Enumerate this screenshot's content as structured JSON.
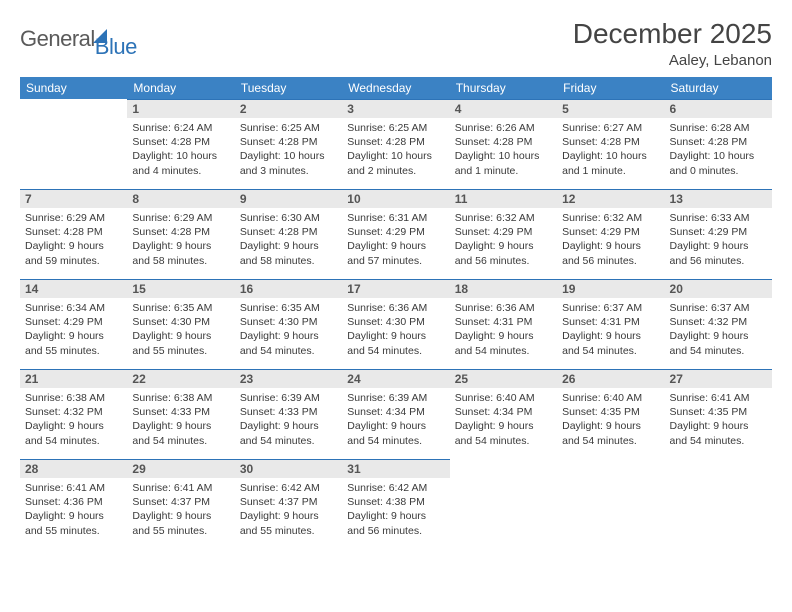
{
  "brand": {
    "text1": "General",
    "text2": "Blue"
  },
  "title": "December 2025",
  "location": "Aaley, Lebanon",
  "header_bg": "#3b82c4",
  "daynum_bg": "#e9e9e9",
  "border_color": "#2d73b7",
  "text_color": "#333333",
  "weekdays": [
    "Sunday",
    "Monday",
    "Tuesday",
    "Wednesday",
    "Thursday",
    "Friday",
    "Saturday"
  ],
  "weeks": [
    [
      null,
      {
        "n": "1",
        "sr": "Sunrise: 6:24 AM",
        "ss": "Sunset: 4:28 PM",
        "dl": "Daylight: 10 hours and 4 minutes."
      },
      {
        "n": "2",
        "sr": "Sunrise: 6:25 AM",
        "ss": "Sunset: 4:28 PM",
        "dl": "Daylight: 10 hours and 3 minutes."
      },
      {
        "n": "3",
        "sr": "Sunrise: 6:25 AM",
        "ss": "Sunset: 4:28 PM",
        "dl": "Daylight: 10 hours and 2 minutes."
      },
      {
        "n": "4",
        "sr": "Sunrise: 6:26 AM",
        "ss": "Sunset: 4:28 PM",
        "dl": "Daylight: 10 hours and 1 minute."
      },
      {
        "n": "5",
        "sr": "Sunrise: 6:27 AM",
        "ss": "Sunset: 4:28 PM",
        "dl": "Daylight: 10 hours and 1 minute."
      },
      {
        "n": "6",
        "sr": "Sunrise: 6:28 AM",
        "ss": "Sunset: 4:28 PM",
        "dl": "Daylight: 10 hours and 0 minutes."
      }
    ],
    [
      {
        "n": "7",
        "sr": "Sunrise: 6:29 AM",
        "ss": "Sunset: 4:28 PM",
        "dl": "Daylight: 9 hours and 59 minutes."
      },
      {
        "n": "8",
        "sr": "Sunrise: 6:29 AM",
        "ss": "Sunset: 4:28 PM",
        "dl": "Daylight: 9 hours and 58 minutes."
      },
      {
        "n": "9",
        "sr": "Sunrise: 6:30 AM",
        "ss": "Sunset: 4:28 PM",
        "dl": "Daylight: 9 hours and 58 minutes."
      },
      {
        "n": "10",
        "sr": "Sunrise: 6:31 AM",
        "ss": "Sunset: 4:29 PM",
        "dl": "Daylight: 9 hours and 57 minutes."
      },
      {
        "n": "11",
        "sr": "Sunrise: 6:32 AM",
        "ss": "Sunset: 4:29 PM",
        "dl": "Daylight: 9 hours and 56 minutes."
      },
      {
        "n": "12",
        "sr": "Sunrise: 6:32 AM",
        "ss": "Sunset: 4:29 PM",
        "dl": "Daylight: 9 hours and 56 minutes."
      },
      {
        "n": "13",
        "sr": "Sunrise: 6:33 AM",
        "ss": "Sunset: 4:29 PM",
        "dl": "Daylight: 9 hours and 56 minutes."
      }
    ],
    [
      {
        "n": "14",
        "sr": "Sunrise: 6:34 AM",
        "ss": "Sunset: 4:29 PM",
        "dl": "Daylight: 9 hours and 55 minutes."
      },
      {
        "n": "15",
        "sr": "Sunrise: 6:35 AM",
        "ss": "Sunset: 4:30 PM",
        "dl": "Daylight: 9 hours and 55 minutes."
      },
      {
        "n": "16",
        "sr": "Sunrise: 6:35 AM",
        "ss": "Sunset: 4:30 PM",
        "dl": "Daylight: 9 hours and 54 minutes."
      },
      {
        "n": "17",
        "sr": "Sunrise: 6:36 AM",
        "ss": "Sunset: 4:30 PM",
        "dl": "Daylight: 9 hours and 54 minutes."
      },
      {
        "n": "18",
        "sr": "Sunrise: 6:36 AM",
        "ss": "Sunset: 4:31 PM",
        "dl": "Daylight: 9 hours and 54 minutes."
      },
      {
        "n": "19",
        "sr": "Sunrise: 6:37 AM",
        "ss": "Sunset: 4:31 PM",
        "dl": "Daylight: 9 hours and 54 minutes."
      },
      {
        "n": "20",
        "sr": "Sunrise: 6:37 AM",
        "ss": "Sunset: 4:32 PM",
        "dl": "Daylight: 9 hours and 54 minutes."
      }
    ],
    [
      {
        "n": "21",
        "sr": "Sunrise: 6:38 AM",
        "ss": "Sunset: 4:32 PM",
        "dl": "Daylight: 9 hours and 54 minutes."
      },
      {
        "n": "22",
        "sr": "Sunrise: 6:38 AM",
        "ss": "Sunset: 4:33 PM",
        "dl": "Daylight: 9 hours and 54 minutes."
      },
      {
        "n": "23",
        "sr": "Sunrise: 6:39 AM",
        "ss": "Sunset: 4:33 PM",
        "dl": "Daylight: 9 hours and 54 minutes."
      },
      {
        "n": "24",
        "sr": "Sunrise: 6:39 AM",
        "ss": "Sunset: 4:34 PM",
        "dl": "Daylight: 9 hours and 54 minutes."
      },
      {
        "n": "25",
        "sr": "Sunrise: 6:40 AM",
        "ss": "Sunset: 4:34 PM",
        "dl": "Daylight: 9 hours and 54 minutes."
      },
      {
        "n": "26",
        "sr": "Sunrise: 6:40 AM",
        "ss": "Sunset: 4:35 PM",
        "dl": "Daylight: 9 hours and 54 minutes."
      },
      {
        "n": "27",
        "sr": "Sunrise: 6:41 AM",
        "ss": "Sunset: 4:35 PM",
        "dl": "Daylight: 9 hours and 54 minutes."
      }
    ],
    [
      {
        "n": "28",
        "sr": "Sunrise: 6:41 AM",
        "ss": "Sunset: 4:36 PM",
        "dl": "Daylight: 9 hours and 55 minutes."
      },
      {
        "n": "29",
        "sr": "Sunrise: 6:41 AM",
        "ss": "Sunset: 4:37 PM",
        "dl": "Daylight: 9 hours and 55 minutes."
      },
      {
        "n": "30",
        "sr": "Sunrise: 6:42 AM",
        "ss": "Sunset: 4:37 PM",
        "dl": "Daylight: 9 hours and 55 minutes."
      },
      {
        "n": "31",
        "sr": "Sunrise: 6:42 AM",
        "ss": "Sunset: 4:38 PM",
        "dl": "Daylight: 9 hours and 56 minutes."
      },
      null,
      null,
      null
    ]
  ]
}
